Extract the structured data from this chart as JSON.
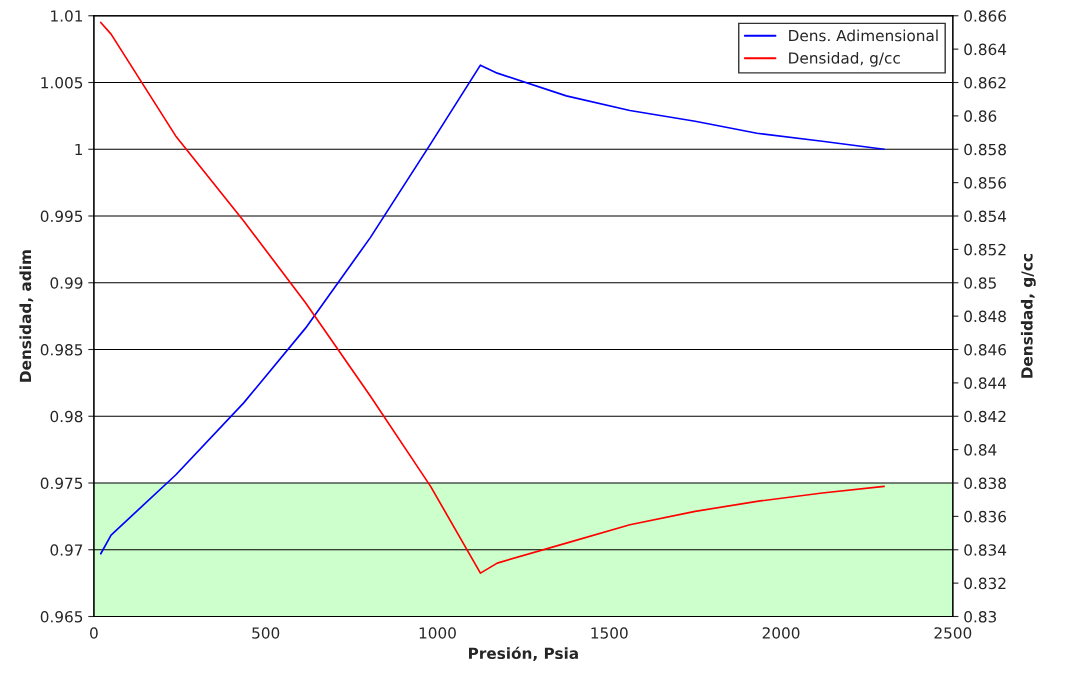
{
  "chart_data": {
    "type": "line",
    "xlabel": "Presión, Psia",
    "ylabel": "Densidad, adim",
    "y2label": "Densidad, g/cc",
    "x": [
      20,
      50,
      238,
      436,
      616,
      805,
      980,
      1125,
      1174,
      1375,
      1560,
      1750,
      1930,
      2120,
      2300
    ],
    "series": [
      {
        "name": "Dens. Adimensional",
        "color": "#0000ff",
        "values": [
          0.9697,
          0.9711,
          0.9756,
          0.981,
          0.9866,
          0.9934,
          1.0004,
          1.0063,
          1.0057,
          1.004,
          1.0029,
          1.0021,
          1.0012,
          1.0006,
          1.0
        ]
      },
      {
        "name": "Densidad, g/cc",
        "color": "#ff0000",
        "axis": "y2",
        "values": [
          0.8656,
          0.8649,
          0.8588,
          0.8537,
          0.8488,
          0.8432,
          0.8378,
          0.8326,
          0.8332,
          0.8344,
          0.8355,
          0.8363,
          0.8369,
          0.8374,
          0.8378
        ]
      }
    ],
    "xlim": [
      0,
      2500
    ],
    "xticks": [
      0,
      500,
      1000,
      1500,
      2000,
      2500
    ],
    "ylim": [
      0.965,
      1.01
    ],
    "yticks": [
      0.965,
      0.97,
      0.975,
      0.98,
      0.985,
      0.99,
      0.995,
      1,
      1.005,
      1.01
    ],
    "y2lim": [
      0.83,
      0.866
    ],
    "y2ticks": [
      0.83,
      0.832,
      0.834,
      0.836,
      0.838,
      0.84,
      0.842,
      0.844,
      0.846,
      0.848,
      0.85,
      0.852,
      0.854,
      0.856,
      0.858,
      0.86,
      0.862,
      0.864,
      0.866
    ],
    "bands": [
      {
        "axis": "y",
        "from": 0.965,
        "to": 0.975,
        "color": "#ccffcc"
      }
    ],
    "grid": "y",
    "legend": "top right",
    "marker": "none",
    "line_style": "solid"
  }
}
